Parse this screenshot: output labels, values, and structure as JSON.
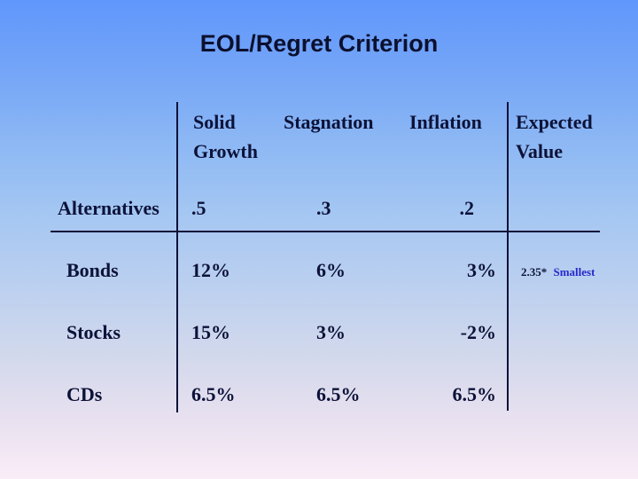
{
  "slide": {
    "title": "EOL/Regret Criterion"
  },
  "table": {
    "header": [
      [
        "Solid",
        "Growth"
      ],
      [
        "Stagnation"
      ],
      [
        "Inflation"
      ],
      [
        "Expected",
        "Value"
      ]
    ],
    "probability_row": {
      "label": "Alternatives",
      "values": [
        ".5",
        ".3",
        ".2"
      ]
    },
    "rows": [
      {
        "label": "Bonds",
        "values": [
          "12%",
          "6%",
          "3%"
        ]
      },
      {
        "label": "Stocks",
        "values": [
          "15%",
          "3%",
          "-2%"
        ]
      },
      {
        "label": "CDs",
        "values": [
          "6.5%",
          "6.5%",
          "6.5%"
        ]
      }
    ]
  },
  "annotation": {
    "value": "2.35*",
    "note": "Smallest"
  },
  "colors": {
    "background_top": "#6097fc",
    "background_bottom": "#f9edf7",
    "text_navy": "#0c1238",
    "annotation_note_blue": "#2929cc",
    "rule_line": "#0c1238"
  }
}
